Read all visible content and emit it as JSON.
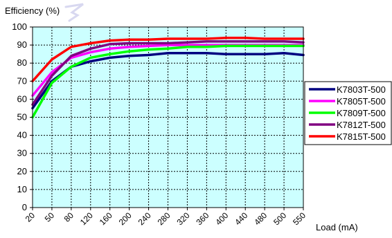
{
  "chart_data": {
    "type": "line",
    "title": "",
    "ylabel": "Efficiency (%)",
    "xlabel": "Load (mA)",
    "ylim": [
      0,
      100
    ],
    "y_ticks": [
      "0",
      "10",
      "20",
      "30",
      "40",
      "50",
      "60",
      "70",
      "80",
      "90",
      "100"
    ],
    "categories": [
      "20",
      "50",
      "80",
      "120",
      "160",
      "200",
      "240",
      "280",
      "320",
      "360",
      "400",
      "440",
      "480",
      "500",
      "550"
    ],
    "grid": true,
    "plot_background": "#ccffff",
    "legend_position": "right",
    "series": [
      {
        "name": "K7803T-500",
        "color": "#000080",
        "values": [
          55,
          70,
          78,
          81,
          83,
          84,
          84.5,
          85.5,
          85.5,
          85.5,
          85,
          85,
          85,
          85.5,
          84.5
        ]
      },
      {
        "name": "K7805T-500",
        "color": "#ff00ff",
        "values": [
          62,
          75,
          83,
          86,
          88,
          89,
          89.5,
          90,
          90,
          90,
          90,
          90,
          90,
          90,
          90
        ]
      },
      {
        "name": "K7809T-500",
        "color": "#00ff00",
        "values": [
          50,
          69,
          78,
          83,
          85,
          86.5,
          87.5,
          88,
          89,
          89,
          89.5,
          89.5,
          89.5,
          89.5,
          89.5
        ]
      },
      {
        "name": "K7812T-500",
        "color": "#800080",
        "values": [
          57,
          73,
          84,
          88,
          90.5,
          91,
          91,
          91,
          91.5,
          92,
          92,
          92,
          92,
          92,
          91.5
        ]
      },
      {
        "name": "K7815T-500",
        "color": "#ff0000",
        "values": [
          70,
          82,
          89,
          91,
          92.5,
          93,
          93,
          93.5,
          93.5,
          93.5,
          94,
          94,
          93.5,
          93.5,
          93.5
        ]
      }
    ]
  }
}
